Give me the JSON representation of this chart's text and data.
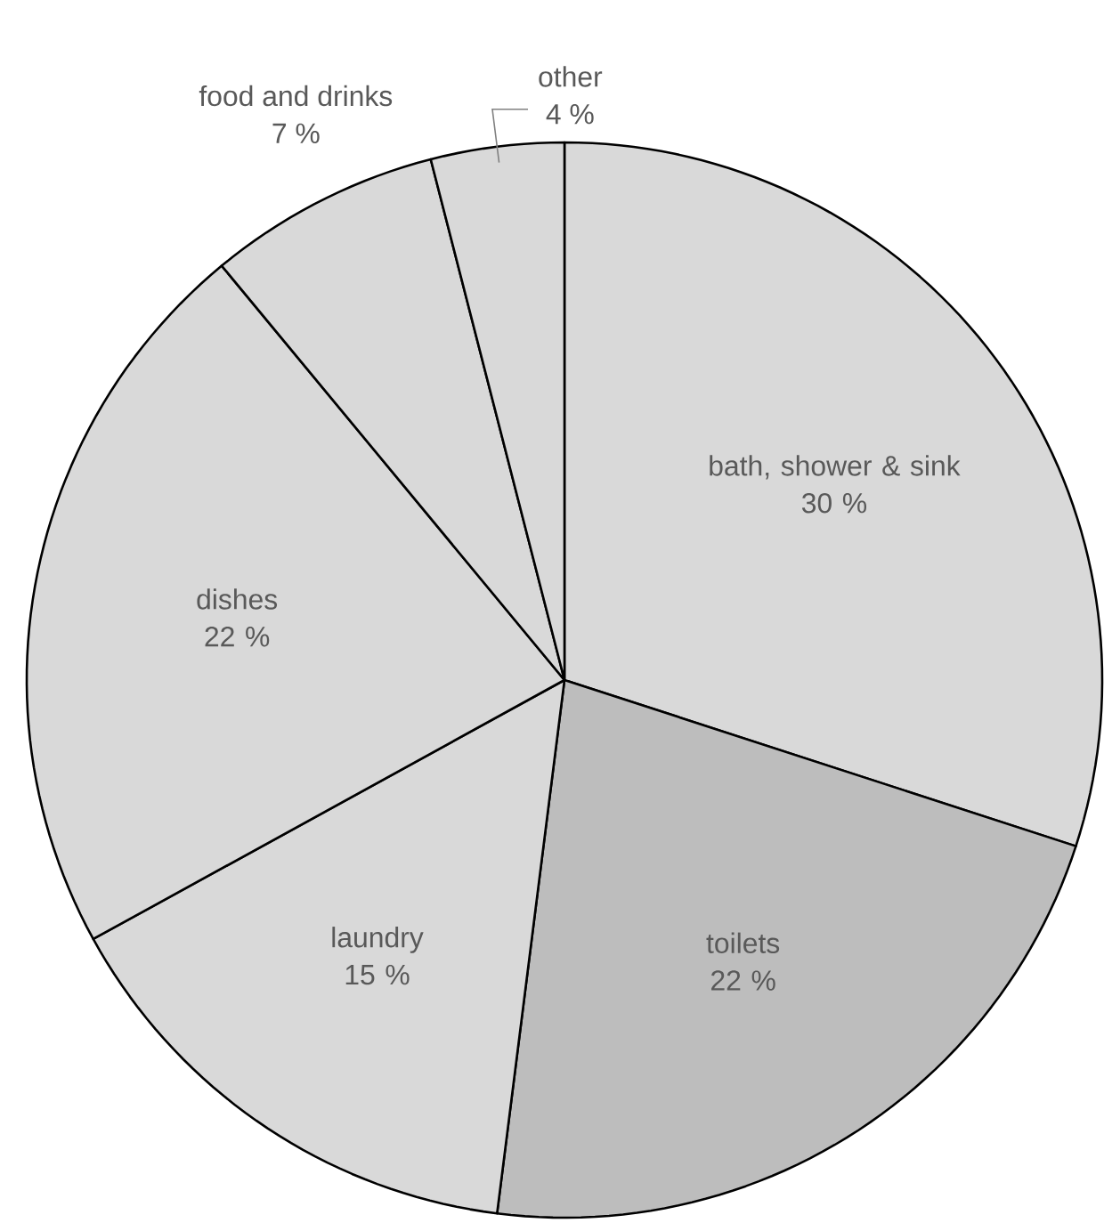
{
  "chart_data": {
    "type": "pie",
    "categories": [
      "bath, shower & sink",
      "toilets",
      "laundry",
      "dishes",
      "food and drinks",
      "other"
    ],
    "values": [
      30,
      22,
      15,
      22,
      7,
      4
    ],
    "value_labels": [
      "30 %",
      "22 %",
      "15 %",
      "22 %",
      "7 %",
      "4 %"
    ],
    "colors": [
      "#d9d9d9",
      "#bdbdbd",
      "#d9d9d9",
      "#d9d9d9",
      "#d9d9d9",
      "#d9d9d9"
    ]
  }
}
